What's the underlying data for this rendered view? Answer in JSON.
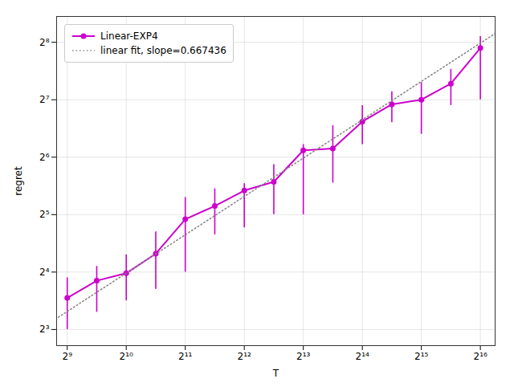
{
  "chart_data": {
    "type": "line",
    "xlabel": "T",
    "ylabel": "regret",
    "log": true,
    "grid": true,
    "legend": "upper left",
    "xlim": [
      451.944,
      77935.4365
    ],
    "ylim": [
      6.58473,
      349.7063
    ],
    "xticks": [
      {
        "value": 512,
        "label": "2⁹"
      },
      {
        "value": 1024,
        "label": "2¹⁰"
      },
      {
        "value": 2048,
        "label": "2¹¹"
      },
      {
        "value": 4096,
        "label": "2¹²"
      },
      {
        "value": 8192,
        "label": "2¹³"
      },
      {
        "value": 16384,
        "label": "2¹⁴"
      },
      {
        "value": 32768,
        "label": "2¹⁵"
      },
      {
        "value": 65536,
        "label": "2¹⁶"
      }
    ],
    "yticks": [
      {
        "value": 8,
        "label": "2³"
      },
      {
        "value": 16,
        "label": "2⁴"
      },
      {
        "value": 32,
        "label": "2⁵"
      },
      {
        "value": 64,
        "label": "2⁶"
      },
      {
        "value": 128,
        "label": "2⁷"
      },
      {
        "value": 256,
        "label": "2⁸"
      }
    ],
    "series": [
      {
        "name": "Linear-EXP4",
        "color": "#cc00cc",
        "marker": "o",
        "line_style": "solid",
        "x": [
          512,
          724.0773,
          1024,
          1448.1547,
          2048,
          2896.3094,
          4096,
          5792.6188,
          8192,
          11585.2375,
          16384,
          23170.475,
          32768,
          46340.95,
          65536
        ],
        "values": [
          11.7127,
          14.42,
          15.7797,
          19.9733,
          30.2738,
          35.5062,
          42.8137,
          47.5047,
          69.551,
          71.0124,
          98.36,
          121.0954,
          128,
          155.417,
          238.8564
        ],
        "error_lower": [
          8,
          9.8492,
          11.3137,
          12.996,
          16,
          25.1067,
          27.2843,
          32,
          32,
          46.8507,
          74.5429,
          97.0059,
          84.4485,
          119.4282,
          128
        ],
        "error_upper": [
          14.9285,
          17.1484,
          19.6983,
          25.9921,
          39.3966,
          43.7133,
          46.5271,
          58.4852,
          74.5429,
          93.7015,
          119.4282,
          141.0439,
          157.5865,
          184.8229,
          274.374
        ]
      },
      {
        "name": "linear fit, slope=0.667436",
        "color": "#888888",
        "line_style": "dotted",
        "x": [
          461.4402,
          77935.4365
        ],
        "values": [
          9.2783,
          284.6183
        ]
      }
    ]
  }
}
